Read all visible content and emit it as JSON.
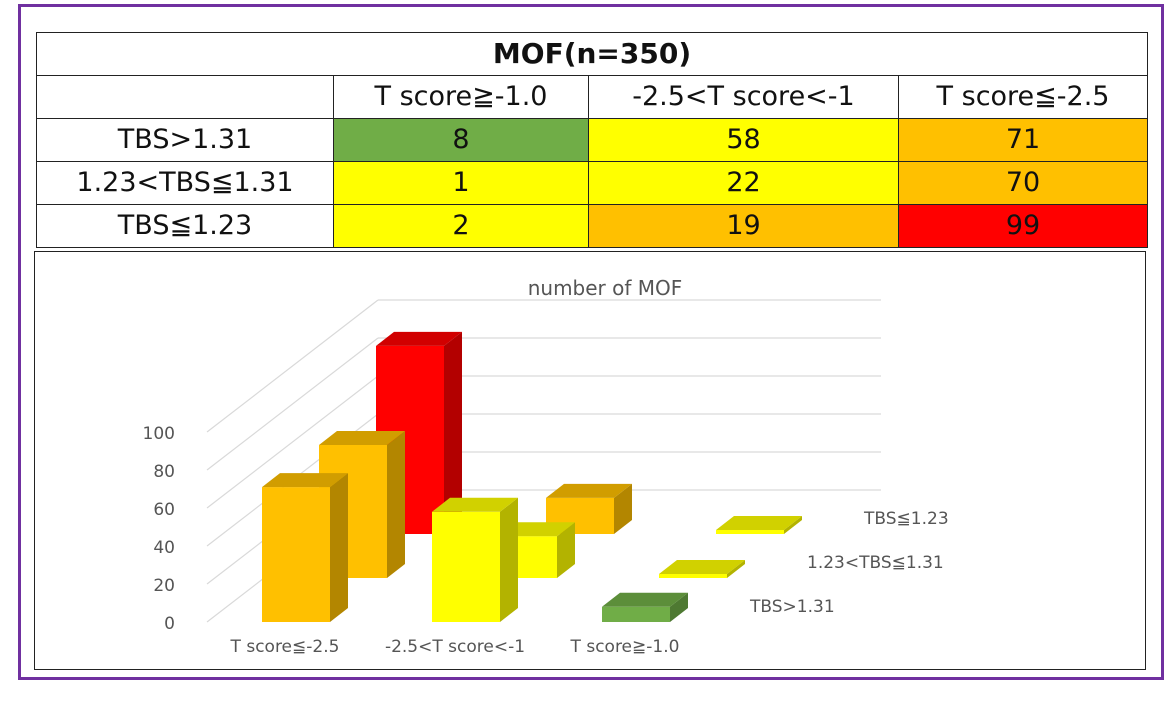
{
  "table": {
    "title": "MOF(n=350)",
    "corner": "",
    "columns": [
      "T score≧-1.0",
      "-2.5<T score<-1",
      "T score≦-2.5"
    ],
    "rows": [
      {
        "label": "TBS>1.31",
        "values": [
          "8",
          "58",
          "71"
        ],
        "colors": [
          "#70ad47",
          "#ffff00",
          "#ffc000"
        ]
      },
      {
        "label": "1.23<TBS≦1.31",
        "values": [
          "1",
          "22",
          "70"
        ],
        "colors": [
          "#ffff00",
          "#ffff00",
          "#ffc000"
        ]
      },
      {
        "label": "TBS≦1.23",
        "values": [
          "2",
          "19",
          "99"
        ],
        "colors": [
          "#ffff00",
          "#ffc000",
          "#ff0000"
        ]
      }
    ]
  },
  "chart_data": {
    "type": "bar",
    "title": "number of  MOF",
    "categories": [
      "T score≦-2.5",
      "-2.5<T score<-1",
      "T score≧-1.0"
    ],
    "yticks": [
      "0",
      "20",
      "40",
      "60",
      "80",
      "100"
    ],
    "ylim": [
      0,
      100
    ],
    "series": [
      {
        "name": "TBS>1.31",
        "values": [
          71,
          58,
          8
        ],
        "colors": [
          "#ffc000",
          "#ffff00",
          "#70ad47"
        ]
      },
      {
        "name": "1.23<TBS≦1.31",
        "values": [
          70,
          22,
          1
        ],
        "colors": [
          "#ffc000",
          "#ffff00",
          "#ffff00"
        ]
      },
      {
        "name": "TBS≦1.23",
        "values": [
          99,
          19,
          2
        ],
        "colors": [
          "#ff0000",
          "#ffc000",
          "#ffff00"
        ]
      }
    ]
  }
}
